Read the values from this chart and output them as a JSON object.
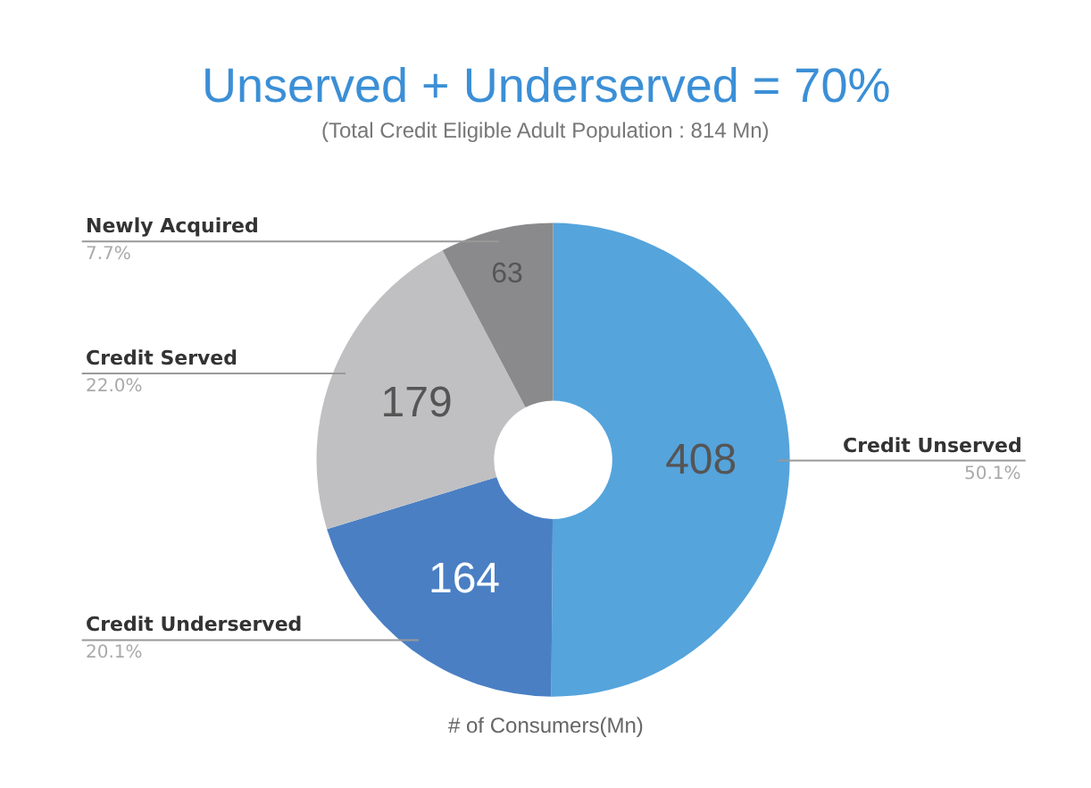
{
  "chart_data": {
    "type": "donut",
    "title": "Unserved + Underserved = 70%",
    "subtitle": "(Total Credit Eligible Adult Population : 814 Mn)",
    "xlabel": "# of Consumers(Mn)",
    "categories": [
      "Credit Unserved",
      "Credit Underserved",
      "Credit Served",
      "Newly Acquired"
    ],
    "values": [
      408,
      164,
      179,
      63
    ],
    "colors": [
      "#55a4dc",
      "#4a7fc4",
      "#c0c0c2",
      "#8a8a8c"
    ],
    "data_labels": true,
    "legend": false,
    "annotations": [
      "50.1%",
      "20.1%",
      "22.0%",
      "7.7%"
    ]
  }
}
